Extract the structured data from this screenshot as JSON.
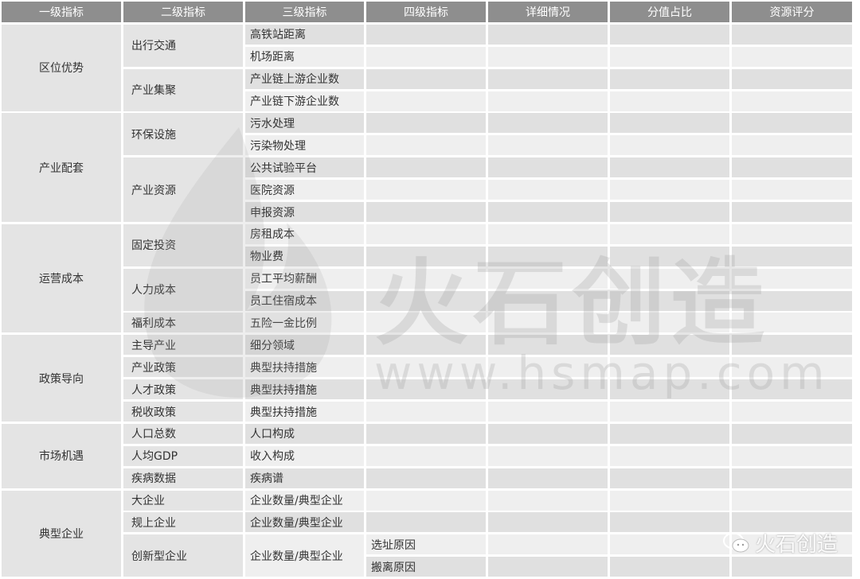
{
  "headers": [
    "一级指标",
    "二级指标",
    "三级指标",
    "四级指标",
    "详细情况",
    "分值占比",
    "资源评分"
  ],
  "level1": [
    {
      "label": "区位优势",
      "start": 0,
      "span": 4
    },
    {
      "label": "产业配套",
      "start": 4,
      "span": 5
    },
    {
      "label": "运营成本",
      "start": 9,
      "span": 5
    },
    {
      "label": "政策导向",
      "start": 14,
      "span": 4
    },
    {
      "label": "市场机遇",
      "start": 18,
      "span": 3
    },
    {
      "label": "典型企业",
      "start": 21,
      "span": 4
    }
  ],
  "level2": [
    {
      "label": "出行交通",
      "start": 0,
      "span": 2
    },
    {
      "label": "产业集聚",
      "start": 2,
      "span": 2
    },
    {
      "label": "环保设施",
      "start": 4,
      "span": 2
    },
    {
      "label": "产业资源",
      "start": 6,
      "span": 3
    },
    {
      "label": "固定投资",
      "start": 9,
      "span": 2
    },
    {
      "label": "人力成本",
      "start": 11,
      "span": 2
    },
    {
      "label": "福利成本",
      "start": 13,
      "span": 1
    },
    {
      "label": "主导产业",
      "start": 14,
      "span": 1
    },
    {
      "label": "产业政策",
      "start": 15,
      "span": 1
    },
    {
      "label": "人才政策",
      "start": 16,
      "span": 1
    },
    {
      "label": "税收政策",
      "start": 17,
      "span": 1
    },
    {
      "label": "人口总数",
      "start": 18,
      "span": 1
    },
    {
      "label": "人均GDP",
      "start": 19,
      "span": 1
    },
    {
      "label": "疾病数据",
      "start": 20,
      "span": 1
    },
    {
      "label": "大企业",
      "start": 21,
      "span": 1
    },
    {
      "label": "规上企业",
      "start": 22,
      "span": 1
    },
    {
      "label": "创新型企业",
      "start": 23,
      "span": 2
    }
  ],
  "level3": [
    {
      "label": "高铁站距离",
      "start": 0,
      "span": 1
    },
    {
      "label": "机场距离",
      "start": 1,
      "span": 1
    },
    {
      "label": "产业链上游企业数",
      "start": 2,
      "span": 1
    },
    {
      "label": "产业链下游企业数",
      "start": 3,
      "span": 1
    },
    {
      "label": "污水处理",
      "start": 4,
      "span": 1
    },
    {
      "label": "污染物处理",
      "start": 5,
      "span": 1
    },
    {
      "label": "公共试验平台",
      "start": 6,
      "span": 1
    },
    {
      "label": "医院资源",
      "start": 7,
      "span": 1
    },
    {
      "label": "申报资源",
      "start": 8,
      "span": 1
    },
    {
      "label": "房租成本",
      "start": 9,
      "span": 1
    },
    {
      "label": "物业费",
      "start": 10,
      "span": 1
    },
    {
      "label": "员工平均薪酬",
      "start": 11,
      "span": 1
    },
    {
      "label": "员工住宿成本",
      "start": 12,
      "span": 1
    },
    {
      "label": "五险一金比例",
      "start": 13,
      "span": 1
    },
    {
      "label": "细分领域",
      "start": 14,
      "span": 1
    },
    {
      "label": "典型扶持措施",
      "start": 15,
      "span": 1
    },
    {
      "label": "典型扶持措施",
      "start": 16,
      "span": 1
    },
    {
      "label": "典型扶持措施",
      "start": 17,
      "span": 1
    },
    {
      "label": "人口构成",
      "start": 18,
      "span": 1
    },
    {
      "label": "收入构成",
      "start": 19,
      "span": 1
    },
    {
      "label": "疾病谱",
      "start": 20,
      "span": 1
    },
    {
      "label": "企业数量/典型企业",
      "start": 21,
      "span": 1
    },
    {
      "label": "企业数量/典型企业",
      "start": 22,
      "span": 1
    },
    {
      "label": "企业数量/典型企业",
      "start": 23,
      "span": 2
    }
  ],
  "level4": [
    "",
    "",
    "",
    "",
    "",
    "",
    "",
    "",
    "",
    "",
    "",
    "",
    "",
    "",
    "",
    "",
    "",
    "",
    "",
    "",
    "",
    "",
    "",
    "选址原因",
    "搬离原因"
  ],
  "watermark": {
    "brand": "火石创造",
    "url": "www.hsmap.com"
  },
  "badge": {
    "icon": "wechat-icon",
    "label": "火石创造"
  },
  "colors": {
    "header_bg": "#8e8e8e",
    "row_dark": "#e0e0e0",
    "row_light": "#efefef",
    "merged_bg": "#e4e4e4"
  }
}
